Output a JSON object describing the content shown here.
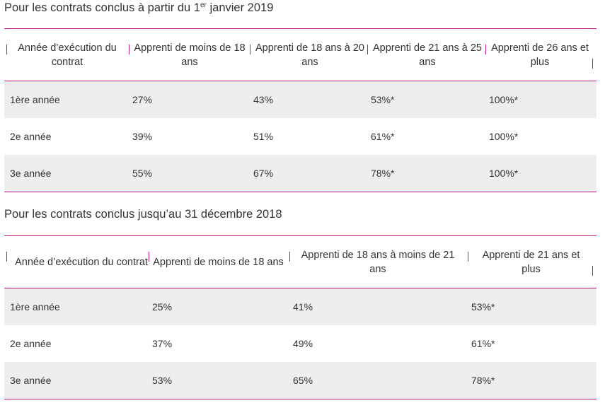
{
  "table1": {
    "title_prefix": "Pour les contrats conclus à partir du 1",
    "title_sup": "er",
    "title_suffix": " janvier 2019",
    "headers": [
      "Année d’exécution du contrat",
      "Apprenti de moins de 18 ans",
      "Apprenti de 18 ans à 20 ans",
      "Apprenti de 21 ans à 25 ans",
      "Apprenti de 26 ans et plus"
    ],
    "rows": [
      [
        "1ère année",
        "27%",
        "43%",
        "53%*",
        "100%*"
      ],
      [
        "2e année",
        "39%",
        "51%",
        "61%*",
        "100%*"
      ],
      [
        "3e année",
        "55%",
        "67%",
        "78%*",
        "100%*"
      ]
    ]
  },
  "table2": {
    "title": "Pour les contrats conclus jusqu’au 31 décembre 2018",
    "headers": [
      "Année d’exécution du contrat",
      "Apprenti de moins de 18 ans",
      "Apprenti de 18 ans à moins de 21 ans",
      "Apprenti de 21 ans et plus"
    ],
    "rows": [
      [
        "1ère année",
        "25%",
        "41%",
        "53%*"
      ],
      [
        "2e année",
        "37%",
        "49%",
        "61%*"
      ],
      [
        "3e année",
        "53%",
        "65%",
        "78%*"
      ]
    ]
  },
  "colors": {
    "accent": "#c2187f",
    "row_shade": "#eeeeee",
    "text": "#333333"
  }
}
